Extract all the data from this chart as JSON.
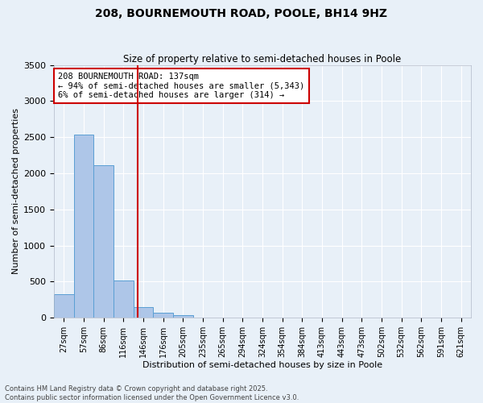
{
  "title_line1": "208, BOURNEMOUTH ROAD, POOLE, BH14 9HZ",
  "title_line2": "Size of property relative to semi-detached houses in Poole",
  "xlabel": "Distribution of semi-detached houses by size in Poole",
  "ylabel": "Number of semi-detached properties",
  "categories": [
    "27sqm",
    "57sqm",
    "86sqm",
    "116sqm",
    "146sqm",
    "176sqm",
    "205sqm",
    "235sqm",
    "265sqm",
    "294sqm",
    "324sqm",
    "354sqm",
    "384sqm",
    "413sqm",
    "443sqm",
    "473sqm",
    "502sqm",
    "532sqm",
    "562sqm",
    "591sqm",
    "621sqm"
  ],
  "values": [
    330,
    2540,
    2110,
    520,
    145,
    70,
    40,
    0,
    0,
    0,
    0,
    0,
    0,
    0,
    0,
    0,
    0,
    0,
    0,
    0,
    0
  ],
  "bar_color": "#aec6e8",
  "bar_edge_color": "#5a9fd4",
  "vline_color": "#cc0000",
  "annotation_text": "208 BOURNEMOUTH ROAD: 137sqm\n← 94% of semi-detached houses are smaller (5,343)\n6% of semi-detached houses are larger (314) →",
  "annotation_box_color": "#cc0000",
  "ylim": [
    0,
    3500
  ],
  "background_color": "#e8f0f8",
  "grid_color": "#ffffff",
  "footer_text": "Contains HM Land Registry data © Crown copyright and database right 2025.\nContains public sector information licensed under the Open Government Licence v3.0."
}
